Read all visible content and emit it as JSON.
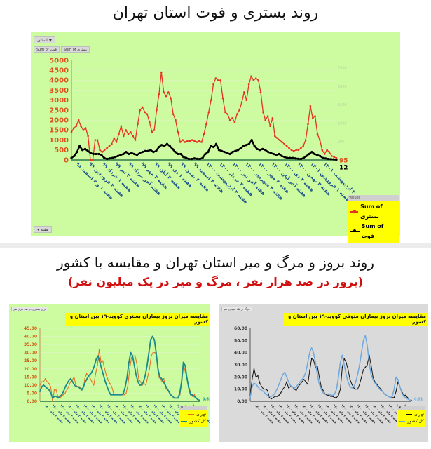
{
  "section1": {
    "title": "روند بستری و فوت استان تهران",
    "filter_button": "استان",
    "sum_buttons": [
      "Sum of بستری",
      "Sum of فوت"
    ],
    "week_button": "هفته",
    "legend": {
      "header": "Values",
      "items": [
        {
          "label": "Sum of بستری",
          "color": "#e8321e"
        },
        {
          "label": "Sum of فوت",
          "color": "#000000"
        }
      ]
    }
  },
  "section2": {
    "title": "روند بروز و مرگ و میر استان تهران و مقایسه با کشور",
    "subtitle": "(بروز در صد هزار نفر ، مرگ و میر در یک میلیون نفر)",
    "left_chart": {
      "tag": "بروز بستری در صد هزار نفر",
      "title": "مقایسه میزان بروز بیماران بستری کووید-۱۹ بین استان و کشور",
      "legend": [
        {
          "label": "تهران",
          "color": "#e86a1e"
        },
        {
          "label": "کل کشور",
          "color": "#1a8a8a"
        }
      ]
    },
    "right_chart": {
      "tag": "مرگ در یک میلیون نفر",
      "title": "مقایسه میزان بروز بیماران متوفی کووید-۱۹ بین استان و کشور",
      "legend": [
        {
          "label": "تهران",
          "color": "#111111"
        },
        {
          "label": "کل کشور",
          "color": "#6fa8dc"
        }
      ]
    }
  },
  "chart_data": [
    {
      "type": "line",
      "title": "روند بستری و فوت استان تهران",
      "xlabel": "هفته",
      "ylabel": "",
      "ylim": [
        0,
        5000
      ],
      "y_ticks": [
        0,
        500,
        1000,
        1500,
        2000,
        2500,
        3000,
        3500,
        4000,
        4500,
        5000
      ],
      "secondary_y_ticks": [
        500,
        1000,
        1500,
        2000,
        2500
      ],
      "grid": true,
      "legend_position": "bottom-right",
      "categories": [
        "هفته ۱ و ۲ اسفند ۹۸",
        "هفته ۴ فروردین ۹۹",
        "هفته ۱ خرداد ۹۹",
        "هفته ۳ تیر ۹۹",
        "هفته آخر مرداد ۹۹",
        "هفته ۴ مهر ۹۹",
        "هفته ۳ آبان ۹۹",
        "هفته ۱ دی ۹۹",
        "هفته ۳ بهمن ۹۹",
        "هفته ۴ اسفند ۹۹",
        "هفته ۴ اردیبهشت ۱۴۰۰",
        "هفته ۳ خرداد ۱۴۰۰",
        "هفته آخر تیر ۱۴۰۰",
        "هفته ۴ شهریور ۱۴۰۰",
        "هفته ۳ مهر ۱۴۰۰",
        "هفته آخر آبان ۱۴۰۰",
        "هفته ۴ دی ۱۴۰۰",
        "هفته ۳ بهمن ۱۴۰۰",
        "هفته ۱ فروردین ۱۴۰۱",
        "هفته ۳ اردیبهشت ۱۴۰۱"
      ],
      "series": [
        {
          "name": "Sum of بستری",
          "color": "#e8321e",
          "last_label": "95",
          "values": [
            1400,
            1600,
            1700,
            2000,
            1700,
            1500,
            1600,
            1200,
            0,
            0,
            1000,
            1000,
            500,
            400,
            500,
            600,
            700,
            800,
            1100,
            900,
            1300,
            1700,
            1200,
            1500,
            1300,
            1400,
            1200,
            1000,
            1800,
            2500,
            2650,
            2400,
            2300,
            1900,
            1400,
            1500,
            2500,
            3300,
            4400,
            3400,
            3200,
            3400,
            3100,
            2300,
            2000,
            1400,
            900,
            1000,
            900,
            950,
            950,
            1000,
            950,
            900,
            950,
            900,
            1300,
            1800,
            2400,
            3000,
            3800,
            4100,
            4000,
            4000,
            3100,
            2400,
            2300,
            2000,
            2100,
            1900,
            2300,
            2500,
            2900,
            3400,
            3000,
            3800,
            4200,
            4000,
            4100,
            4000,
            3400,
            2400,
            2000,
            2200,
            1700,
            2100,
            1200,
            1100,
            1000,
            900,
            800,
            700,
            600,
            500,
            450,
            500,
            500,
            600,
            700,
            1000,
            1800,
            2700,
            2100,
            2200,
            1300,
            1000,
            500,
            300,
            500,
            400,
            200,
            150,
            95
          ]
        },
        {
          "name": "Sum of فوت",
          "color": "#000000",
          "last_label": "12",
          "values": [
            100,
            200,
            400,
            700,
            500,
            550,
            450,
            350,
            300,
            300,
            300,
            250,
            100,
            50,
            80,
            100,
            150,
            200,
            250,
            300,
            400,
            300,
            350,
            300,
            250,
            350,
            400,
            450,
            450,
            500,
            400,
            450,
            650,
            750,
            700,
            800,
            700,
            550,
            400,
            300,
            300,
            150,
            100,
            50,
            50,
            80,
            60,
            50,
            100,
            300,
            400,
            700,
            650,
            800,
            500,
            450,
            400,
            350,
            300,
            400,
            450,
            500,
            600,
            700,
            750,
            800,
            1000,
            700,
            550,
            500,
            550,
            500,
            400,
            350,
            300,
            250,
            300,
            200,
            150,
            100,
            100,
            100,
            80,
            60,
            50,
            100,
            200,
            300,
            400,
            300,
            250,
            200,
            100,
            80,
            50,
            40,
            30,
            12
          ]
        }
      ]
    },
    {
      "type": "line",
      "title": "مقایسه میزان بروز بیماران بستری کووید-۱۹ بین استان و کشور",
      "xlabel": "هفته",
      "ylabel": "بروز بستری در صد هزار نفر",
      "ylim": [
        0,
        45
      ],
      "y_ticks": [
        "0.00",
        "5.00",
        "10.00",
        "15.00",
        "20.00",
        "25.00",
        "30.00",
        "35.00",
        "40.00",
        "45.00"
      ],
      "grid": true,
      "legend_position": "bottom-right",
      "series": [
        {
          "name": "تهران",
          "color": "#e86a1e",
          "values": [
            10,
            12,
            12,
            14,
            12,
            11,
            9,
            0,
            7,
            7,
            3,
            2,
            3,
            4,
            5,
            7,
            9,
            12,
            13,
            15,
            10,
            9,
            9,
            8,
            7,
            14,
            17,
            16,
            14,
            12,
            10,
            17,
            22,
            32,
            24,
            25,
            20,
            16,
            13,
            11,
            9,
            5,
            4,
            4,
            4,
            4,
            4,
            4,
            5,
            10,
            20,
            27,
            28,
            28,
            23,
            14,
            12,
            10,
            11,
            10,
            15,
            20,
            28,
            30,
            30,
            28,
            15,
            14,
            12,
            14,
            8,
            7,
            6,
            4,
            3,
            2,
            2,
            2,
            4,
            12,
            22,
            18,
            14,
            9,
            5,
            3,
            4,
            2,
            1,
            0.63
          ]
        },
        {
          "name": "کل کشور",
          "color": "#1a8a8a",
          "last_label": "0.63",
          "values": [
            6,
            9,
            10,
            9,
            8,
            7,
            5,
            2,
            3,
            3,
            2,
            3,
            4,
            6,
            9,
            11,
            13,
            14,
            12,
            10,
            9,
            9,
            8,
            7,
            9,
            12,
            14,
            16,
            17,
            19,
            22,
            26,
            28,
            24,
            20,
            16,
            12,
            9,
            6,
            4,
            4,
            4,
            4,
            4,
            4,
            4,
            5,
            9,
            15,
            24,
            30,
            28,
            22,
            16,
            12,
            10,
            10,
            12,
            16,
            22,
            30,
            38,
            40,
            38,
            30,
            20,
            15,
            14,
            12,
            10,
            8,
            6,
            4,
            3,
            2,
            2,
            2,
            5,
            12,
            24,
            22,
            14,
            8,
            4,
            4,
            3,
            2,
            1,
            0.63
          ]
        }
      ]
    },
    {
      "type": "line",
      "title": "مقایسه میزان بروز بیماران متوفی کووید-۱۹ بین استان و کشور",
      "xlabel": "هفته",
      "ylabel": "مرگ در یک میلیون نفر",
      "ylim": [
        0,
        60
      ],
      "y_ticks": [
        "0.00",
        "10.00",
        "20.00",
        "30.00",
        "40.00",
        "50.00",
        "60.00"
      ],
      "grid": false,
      "legend_position": "bottom-right",
      "series": [
        {
          "name": "تهران",
          "color": "#111111",
          "values": [
            5,
            18,
            27,
            20,
            21,
            15,
            12,
            10,
            10,
            9,
            3,
            2,
            3,
            4,
            4,
            5,
            7,
            10,
            12,
            16,
            11,
            12,
            12,
            10,
            9,
            12,
            14,
            16,
            18,
            16,
            14,
            25,
            35,
            34,
            28,
            29,
            20,
            12,
            9,
            6,
            5,
            5,
            4,
            4,
            3,
            3,
            5,
            10,
            28,
            35,
            32,
            26,
            18,
            14,
            11,
            10,
            10,
            14,
            20,
            26,
            28,
            30,
            38,
            30,
            20,
            16,
            14,
            12,
            10,
            8,
            6,
            5,
            4,
            3,
            3,
            3,
            8,
            16,
            12,
            8,
            5,
            5,
            3,
            1,
            0.91
          ]
        },
        {
          "name": "کل کشور",
          "color": "#6fa8dc",
          "last_label": "0.91",
          "values": [
            3,
            12,
            15,
            14,
            12,
            10,
            9,
            8,
            6,
            5,
            4,
            4,
            5,
            7,
            10,
            14,
            18,
            22,
            24,
            20,
            16,
            13,
            12,
            11,
            12,
            14,
            16,
            18,
            20,
            24,
            32,
            40,
            44,
            40,
            32,
            22,
            14,
            10,
            7,
            6,
            6,
            6,
            5,
            5,
            6,
            10,
            20,
            32,
            38,
            30,
            22,
            16,
            12,
            11,
            12,
            16,
            22,
            30,
            40,
            50,
            54,
            46,
            32,
            22,
            18,
            15,
            13,
            11,
            9,
            8,
            6,
            5,
            4,
            3,
            4,
            10,
            20,
            18,
            12,
            7,
            4,
            3,
            2,
            1,
            0.91
          ]
        }
      ]
    }
  ]
}
